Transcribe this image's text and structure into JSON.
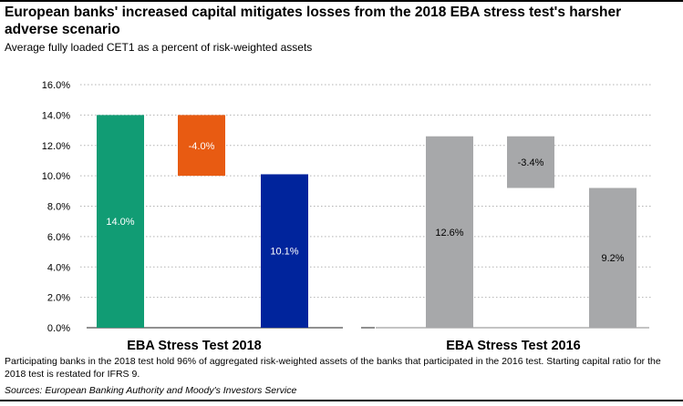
{
  "title": "European banks' increased capital mitigates losses from the 2018 EBA stress test's harsher adverse scenario",
  "subtitle": "Average fully loaded CET1 as a percent of risk-weighted assets",
  "note": "Participating banks in the 2018 test hold 96% of aggregated risk-weighted assets of the banks that participated in the 2016 test. Starting capital ratio for the 2018 test is restated for IFRS 9.",
  "source": "Sources: European Banking Authority and Moody's Investors Service",
  "chart_data": {
    "type": "bar",
    "subtype": "waterfall",
    "ylim": [
      0,
      16
    ],
    "yticks": [
      "0.0%",
      "2.0%",
      "4.0%",
      "6.0%",
      "8.0%",
      "10.0%",
      "12.0%",
      "14.0%",
      "16.0%"
    ],
    "gridlines": true,
    "groups": [
      {
        "label": "EBA Stress Test 2018",
        "bars": [
          {
            "start": 0,
            "end": 14.0,
            "label": "14.0%",
            "color": "#119c74"
          },
          {
            "start": 14.0,
            "end": 10.0,
            "label": "-4.0%",
            "color": "#e85b12"
          },
          {
            "start": 0,
            "end": 10.1,
            "label": "10.1%",
            "color": "#00249c"
          }
        ]
      },
      {
        "label": "EBA Stress Test 2016",
        "bars": [
          {
            "start": 0,
            "end": 12.6,
            "label": "12.6%",
            "color": "#a7a8aa"
          },
          {
            "start": 12.6,
            "end": 9.2,
            "label": "-3.4%",
            "color": "#a7a8aa"
          },
          {
            "start": 0,
            "end": 9.2,
            "label": "9.2%",
            "color": "#a7a8aa"
          }
        ]
      }
    ]
  }
}
